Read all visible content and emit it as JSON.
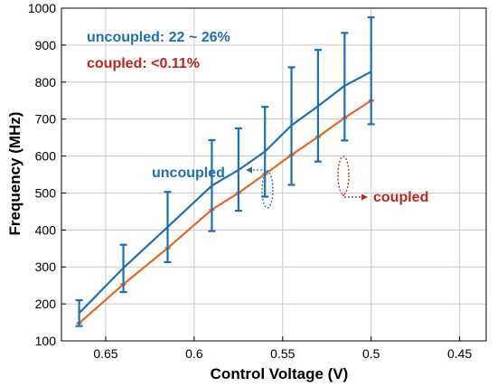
{
  "chart_data": {
    "type": "line",
    "xlabel": "Control Voltage (V)",
    "ylabel": "Frequency (MHz)",
    "x_reversed": true,
    "xlim": [
      0.675,
      0.435
    ],
    "ylim": [
      100,
      1000
    ],
    "x_ticks": [
      0.65,
      0.6,
      0.55,
      0.5,
      0.45
    ],
    "x_tick_labels": [
      "0.65",
      "0.6",
      "0.55",
      "0.5",
      "0.45"
    ],
    "y_ticks": [
      100,
      200,
      300,
      400,
      500,
      600,
      700,
      800,
      900,
      1000
    ],
    "y_tick_labels": [
      "100",
      "200",
      "300",
      "400",
      "500",
      "600",
      "700",
      "800",
      "900",
      "1000"
    ],
    "grid": true,
    "x": [
      0.665,
      0.64,
      0.615,
      0.59,
      0.575,
      0.56,
      0.545,
      0.53,
      0.515,
      0.5,
      0.48
    ],
    "series": [
      {
        "name": "uncoupled",
        "color": "#1f6fb5",
        "values": [
          175,
          297,
          408,
          520,
          562,
          612,
          683,
          735,
          790,
          828
        ],
        "x": [
          0.665,
          0.64,
          0.615,
          0.59,
          0.575,
          0.56,
          0.545,
          0.53,
          0.515,
          0.5
        ],
        "error_low": [
          140,
          232,
          313,
          397,
          452,
          490,
          522,
          585,
          642,
          686
        ],
        "error_high": [
          210,
          360,
          503,
          643,
          675,
          733,
          840,
          887,
          933,
          975
        ]
      },
      {
        "name": "coupled",
        "color": "#e06a2a",
        "values": [
          148,
          253,
          351,
          455,
          500,
          551,
          603,
          652,
          703,
          750
        ],
        "x": [
          0.665,
          0.64,
          0.615,
          0.59,
          0.575,
          0.56,
          0.545,
          0.53,
          0.515,
          0.5
        ]
      }
    ],
    "annotations": [
      {
        "text": "uncoupled: 22 ~ 26%",
        "color": "#1f6fb5"
      },
      {
        "text": "coupled: <0.11%",
        "color": "#c0261f"
      },
      {
        "text": "uncoupled",
        "color": "#1f6fb5"
      },
      {
        "text": "coupled",
        "color": "#c0261f"
      }
    ],
    "axis_color": "#000000",
    "grid_color": "#cccccc"
  }
}
